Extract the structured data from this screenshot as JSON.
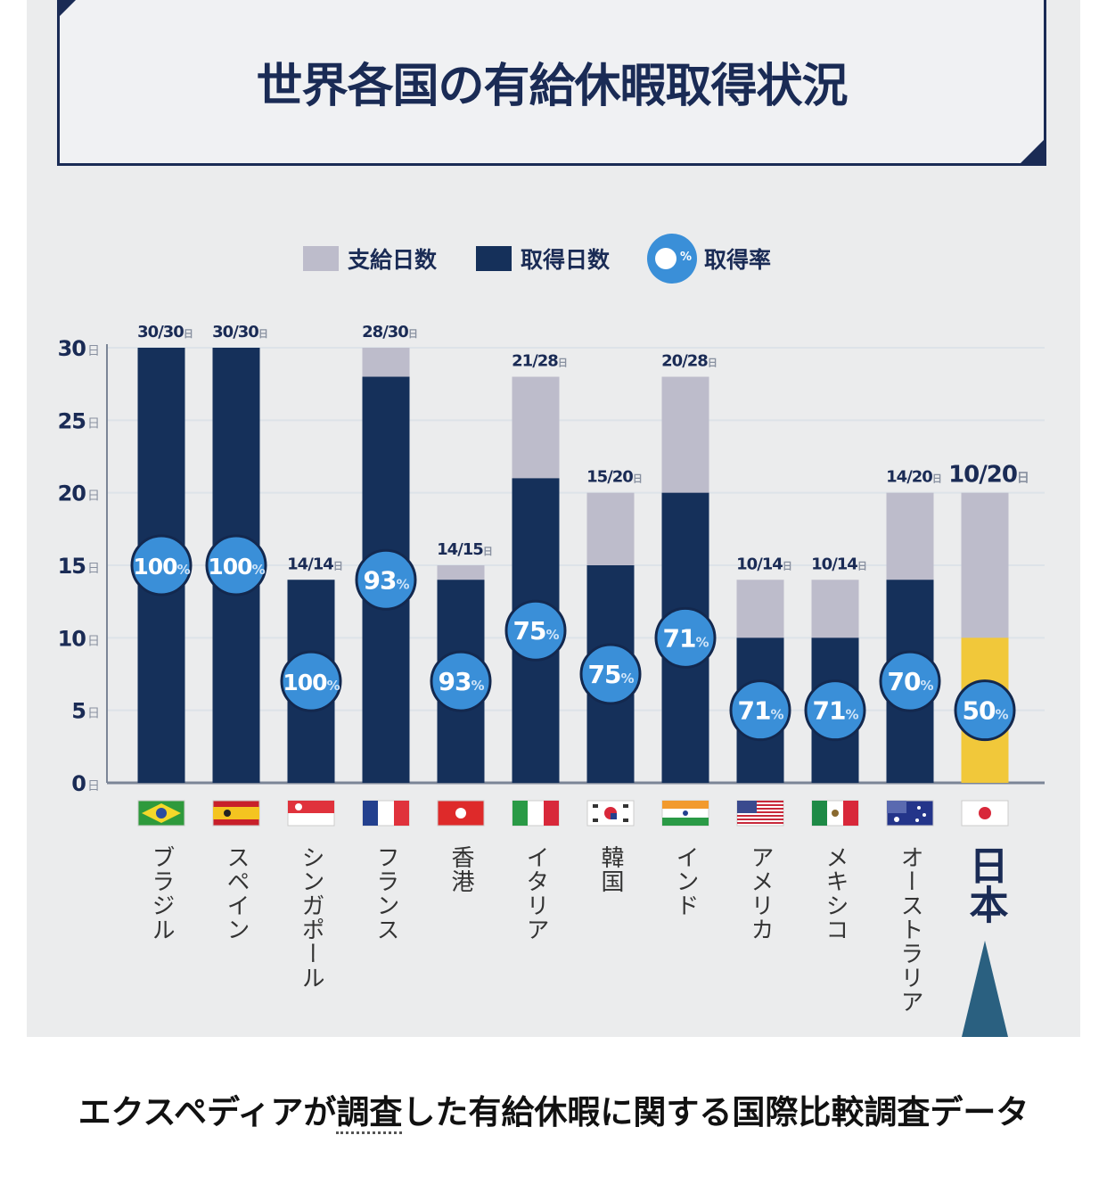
{
  "chart_data": {
    "type": "bar",
    "title": "世界各国の有給休暇取得状況",
    "legend": {
      "granted": "支給日数",
      "taken": "取得日数",
      "rate": "取得率",
      "rate_symbol": "%"
    },
    "ylim": [
      0,
      30
    ],
    "yticks": [
      {
        "v": 0,
        "label": "0",
        "unit": "日"
      },
      {
        "v": 5,
        "label": "5",
        "unit": "日"
      },
      {
        "v": 10,
        "label": "10",
        "unit": "日"
      },
      {
        "v": 15,
        "label": "15",
        "unit": "日"
      },
      {
        "v": 20,
        "label": "20",
        "unit": "日"
      },
      {
        "v": 25,
        "label": "25",
        "unit": "日"
      },
      {
        "v": 30,
        "label": "30",
        "unit": "日"
      }
    ],
    "grid": true,
    "unit": "日",
    "categories": [
      "ブラジル",
      "スペイン",
      "シンガポール",
      "フランス",
      "香港",
      "イタリア",
      "韓国",
      "インド",
      "アメリカ",
      "メキシコ",
      "オーストラリア",
      "日本"
    ],
    "flags": [
      "brazil",
      "spain",
      "singapore",
      "france",
      "hongkong",
      "italy",
      "korea",
      "india",
      "usa",
      "mexico",
      "australia",
      "japan"
    ],
    "series": [
      {
        "name": "支給日数",
        "values": [
          30,
          30,
          14,
          30,
          15,
          28,
          20,
          28,
          14,
          14,
          20,
          20
        ]
      },
      {
        "name": "取得日数",
        "values": [
          30,
          30,
          14,
          28,
          14,
          21,
          15,
          20,
          10,
          10,
          14,
          10
        ]
      },
      {
        "name": "取得率",
        "values": [
          100,
          100,
          100,
          93,
          93,
          75,
          75,
          71,
          71,
          71,
          70,
          50
        ]
      }
    ],
    "data_labels": [
      "30/30",
      "30/30",
      "14/14",
      "28/30",
      "14/15",
      "21/28",
      "15/20",
      "20/28",
      "10/14",
      "10/14",
      "14/20",
      "10/20"
    ],
    "highlight": "日本",
    "colors": {
      "granted": "#bdbccb",
      "taken": "#15305a",
      "highlight": "#f1c83a",
      "rate": "#3a8fd8",
      "axis": "#1a2b55",
      "arrow": "#2a6080"
    }
  },
  "caption": {
    "before": "エクスペディアが",
    "link": "調査",
    "after": "した有給休暇に関する国際比較調査データ"
  }
}
